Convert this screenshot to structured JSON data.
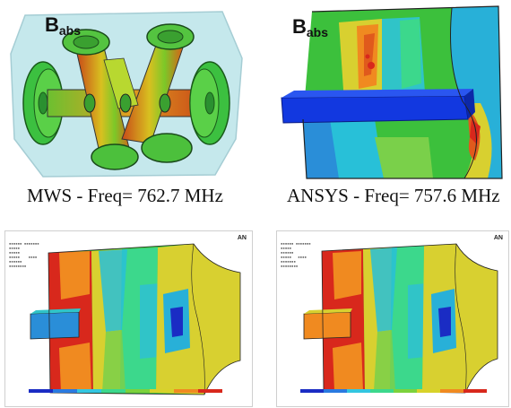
{
  "panels": {
    "mws": {
      "field_label_main": "B",
      "field_label_sub": "abs",
      "caption": "MWS - Freq= 762.7 MHz"
    },
    "ansys": {
      "field_label_main": "B",
      "field_label_sub": "abs",
      "caption": "ANSYS - Freq= 757.6 MHz"
    },
    "bottom_left": {
      "logo": "AN"
    },
    "bottom_right": {
      "logo": "AN"
    }
  },
  "colors": {
    "colorbar": [
      "#1a2cc4",
      "#2a7ae0",
      "#33c6e0",
      "#3cd88c",
      "#7cd23c",
      "#d8d22a",
      "#f08a20",
      "#d8281c"
    ]
  }
}
